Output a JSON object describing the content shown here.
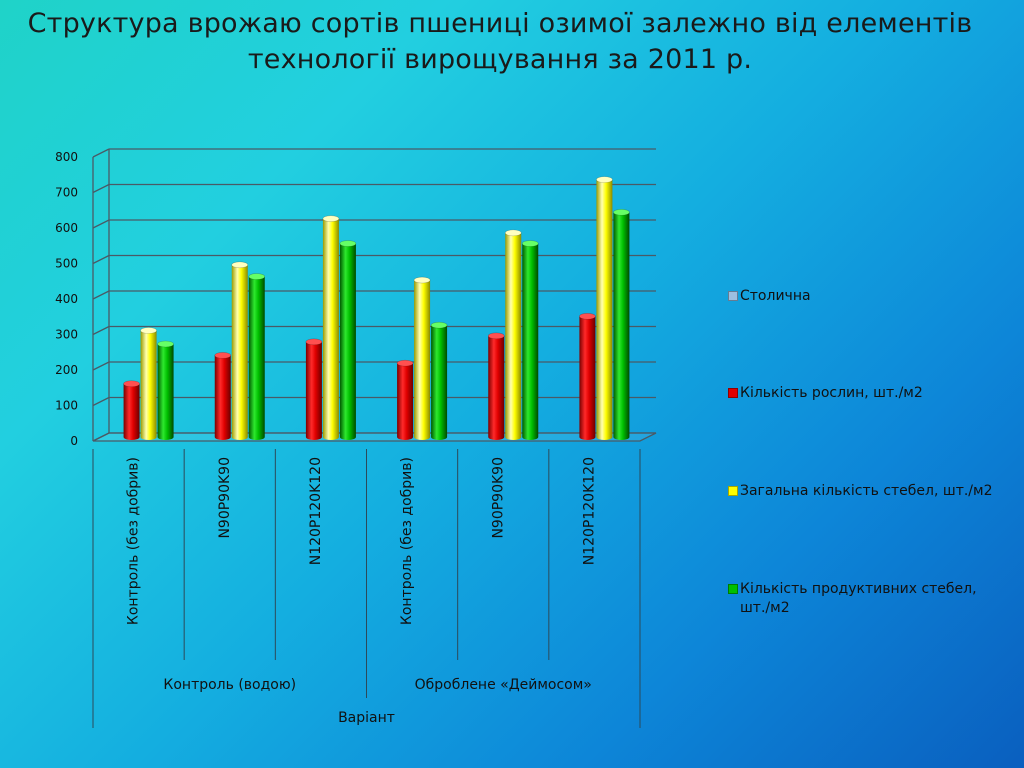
{
  "title_line1": "Структура врожаю сортів пшениці озимої залежно від елементів",
  "title_line2": "технології вирощування за 2011 р.",
  "chart_data": {
    "type": "bar",
    "ylim": [
      0,
      800
    ],
    "yticks": [
      0,
      100,
      200,
      300,
      400,
      500,
      600,
      700,
      800
    ],
    "grid": true,
    "legend_position": "right",
    "xlabel": "Варіант",
    "ylabel": "",
    "categories": [
      "Контроль (без добрив)",
      "N90P90K90",
      "N120P120K120",
      "Контроль (без добрив)",
      "N90P90K90",
      "N120P120K120"
    ],
    "groups": [
      {
        "label": "Контроль (водою)",
        "span": 3
      },
      {
        "label": "Оброблене «Деймосом»",
        "span": 3
      }
    ],
    "series": [
      {
        "name": "Столична",
        "color": "#9dbfe0",
        "values": [
          0,
          0,
          0,
          0,
          0,
          0
        ]
      },
      {
        "name": "Кількість рослин, шт./м2",
        "color": "#e00000",
        "values": [
          150,
          230,
          268,
          208,
          285,
          340
        ]
      },
      {
        "name": "Загальна кількість стебел, шт./м2",
        "color": "#ffff00",
        "values": [
          300,
          485,
          615,
          442,
          575,
          725
        ]
      },
      {
        "name": "Кількість продуктивних стебел, шт./м2",
        "color": "#00c000",
        "values": [
          262,
          452,
          545,
          315,
          545,
          633
        ]
      }
    ]
  }
}
